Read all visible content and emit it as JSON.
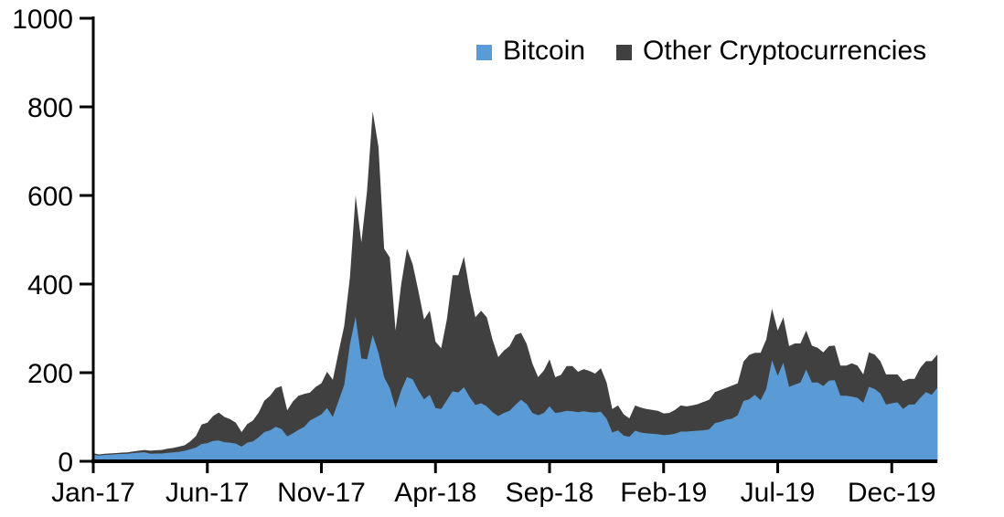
{
  "chart_data": {
    "type": "area",
    "stacked": true,
    "title": "",
    "grid": false,
    "legend_position": "top-center",
    "background_color": "#ffffff",
    "axis_color": "#000000",
    "y_axis": {
      "min": 0,
      "max": 1000,
      "tick_interval": 200,
      "tick_labels": [
        "0",
        "200",
        "400",
        "600",
        "800",
        "1000"
      ]
    },
    "x_axis": {
      "tick_labels": [
        "Jan-17",
        "Jun-17",
        "Nov-17",
        "Apr-18",
        "Sep-18",
        "Feb-19",
        "Jul-19",
        "Dec-19"
      ],
      "tick_month_offsets": [
        0,
        5,
        10,
        15,
        20,
        25,
        30,
        35
      ],
      "start_month_offset": 0,
      "end_month_offset": 37,
      "step_months": 0.25
    },
    "series": [
      {
        "name": "Bitcoin",
        "color": "#5B9BD5",
        "values": [
          15,
          13,
          14.5,
          15,
          15.8,
          16.5,
          17,
          18.5,
          19.5,
          20.5,
          17,
          17.5,
          17.5,
          19,
          20,
          21.5,
          23.5,
          27,
          31,
          39,
          41,
          46,
          47,
          43,
          42,
          40,
          33,
          42,
          45,
          54,
          66,
          70,
          78,
          73,
          56,
          63,
          71,
          78,
          92,
          99,
          106,
          120,
          100,
          136,
          172,
          264,
          326,
          232,
          230,
          285,
          245,
          190,
          165,
          120,
          160,
          190,
          185,
          160,
          140,
          150,
          120,
          118,
          138,
          158,
          155,
          167,
          145,
          127,
          131,
          124,
          111,
          102,
          109,
          114,
          127,
          139,
          129,
          109,
          104,
          109,
          124,
          109,
          111,
          114,
          113,
          111,
          113,
          111,
          110,
          112,
          96,
          65,
          70,
          58,
          55,
          69,
          65,
          63,
          62,
          61,
          59,
          60,
          62,
          67,
          67,
          68,
          69,
          70,
          72,
          86,
          89,
          94,
          96,
          104,
          136,
          140,
          150,
          138,
          163,
          228,
          193,
          222,
          168,
          173,
          178,
          207,
          178,
          178,
          170,
          182,
          183,
          148,
          148,
          146,
          143,
          132,
          168,
          163,
          153,
          128,
          131,
          133,
          118,
          128,
          128,
          143,
          156,
          150,
          166
        ]
      },
      {
        "name": "Other Cryptocurrencies",
        "color": "#404040",
        "values": [
          3,
          2.5,
          2.5,
          2.7,
          2.8,
          3,
          3.2,
          3.5,
          4.5,
          5,
          7,
          7.5,
          8,
          9.5,
          10,
          11.5,
          12.5,
          18,
          26,
          44,
          46,
          56,
          63,
          57,
          53,
          47,
          33,
          42,
          47,
          56,
          71,
          78,
          87,
          97,
          59,
          72,
          77,
          74,
          63,
          69,
          70,
          82,
          84,
          110,
          133,
          151,
          274,
          262,
          380,
          505,
          465,
          290,
          295,
          175,
          240,
          290,
          260,
          225,
          180,
          190,
          150,
          137,
          182,
          262,
          265,
          295,
          240,
          198,
          209,
          201,
          164,
          133,
          141,
          146,
          158,
          151,
          136,
          111,
          86,
          96,
          106,
          81,
          84,
          101,
          102,
          91,
          95,
          93,
          88,
          98,
          82,
          53,
          56,
          48,
          42,
          57,
          56,
          55,
          54,
          53,
          49,
          49,
          54,
          59,
          57,
          58,
          60,
          64,
          67,
          70,
          72,
          72,
          75,
          72,
          89,
          100,
          95,
          107,
          112,
          117,
          102,
          103,
          92,
          93,
          88,
          88,
          83,
          78,
          76,
          78,
          78,
          68,
          68,
          75,
          73,
          64,
          78,
          78,
          73,
          68,
          65,
          63,
          63,
          58,
          58,
          68,
          70,
          76,
          75
        ]
      }
    ]
  }
}
